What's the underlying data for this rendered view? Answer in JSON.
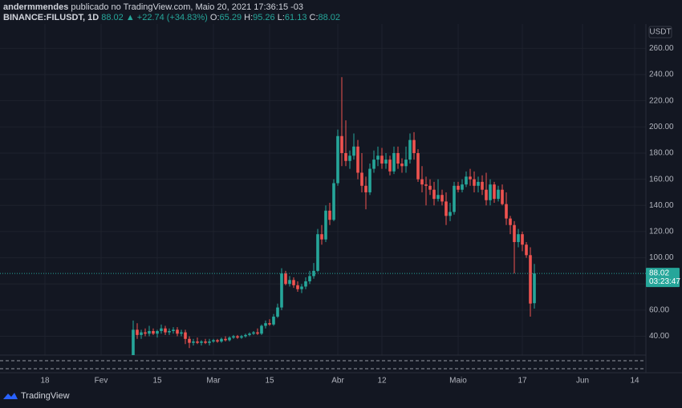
{
  "header": {
    "author": "andermmendes",
    "published": "publicado no TradingView.com, Maio 20, 2021 17:36:15 -03",
    "symbol": "BINANCE:FILUSDT, 1D",
    "change": "▲ +22.74 (+34.83%)",
    "o_label": "O:",
    "h_label": "H:",
    "l_label": "L:",
    "c_label": "C:"
  },
  "branding": "TradingView",
  "chart_data": {
    "type": "candlestick",
    "x": [
      "2021-02-09",
      "2021-02-10",
      "2021-02-11",
      "2021-02-12",
      "2021-02-13",
      "2021-02-14",
      "2021-02-15",
      "2021-02-16",
      "2021-02-17",
      "2021-02-18",
      "2021-02-19",
      "2021-02-20",
      "2021-02-21",
      "2021-02-22",
      "2021-02-23",
      "2021-02-24",
      "2021-02-25",
      "2021-02-26",
      "2021-02-27",
      "2021-02-28",
      "2021-03-01",
      "2021-03-02",
      "2021-03-03",
      "2021-03-04",
      "2021-03-05",
      "2021-03-06",
      "2021-03-07",
      "2021-03-08",
      "2021-03-09",
      "2021-03-10",
      "2021-03-11",
      "2021-03-12",
      "2021-03-13",
      "2021-03-14",
      "2021-03-15",
      "2021-03-16",
      "2021-03-17",
      "2021-03-18",
      "2021-03-19",
      "2021-03-20",
      "2021-03-21",
      "2021-03-22",
      "2021-03-23",
      "2021-03-24",
      "2021-03-25",
      "2021-03-26",
      "2021-03-27",
      "2021-03-28",
      "2021-03-29",
      "2021-03-30",
      "2021-03-31",
      "2021-04-01",
      "2021-04-02",
      "2021-04-03",
      "2021-04-04",
      "2021-04-05",
      "2021-04-06",
      "2021-04-07",
      "2021-04-08",
      "2021-04-09",
      "2021-04-10",
      "2021-04-11",
      "2021-04-12",
      "2021-04-13",
      "2021-04-14",
      "2021-04-15",
      "2021-04-16",
      "2021-04-17",
      "2021-04-18",
      "2021-04-19",
      "2021-04-20",
      "2021-04-21",
      "2021-04-22",
      "2021-04-23",
      "2021-04-24",
      "2021-04-25",
      "2021-04-26",
      "2021-04-27",
      "2021-04-28",
      "2021-04-29",
      "2021-04-30",
      "2021-05-01",
      "2021-05-02",
      "2021-05-03",
      "2021-05-04",
      "2021-05-05",
      "2021-05-06",
      "2021-05-07",
      "2021-05-08",
      "2021-05-09",
      "2021-05-10",
      "2021-05-11",
      "2021-05-12",
      "2021-05-13",
      "2021-05-14",
      "2021-05-15",
      "2021-05-16",
      "2021-05-17",
      "2021-05-18",
      "2021-05-19",
      "2021-05-20"
    ],
    "open": [
      25,
      45,
      41,
      43,
      42,
      44,
      42,
      44,
      46,
      43,
      44,
      45,
      42,
      43,
      38,
      35,
      36,
      35,
      36,
      35,
      36,
      37,
      36,
      38,
      37,
      39,
      40,
      39,
      40,
      41,
      42,
      43,
      42,
      48,
      50,
      49,
      55,
      62,
      88,
      80,
      83,
      79,
      76,
      78,
      82,
      86,
      90,
      118,
      114,
      136,
      129,
      157,
      193,
      180,
      174,
      178,
      185,
      165,
      155,
      150,
      168,
      175,
      178,
      172,
      175,
      166,
      180,
      172,
      170,
      175,
      190,
      180,
      160,
      156,
      155,
      152,
      145,
      148,
      143,
      132,
      135,
      155,
      152,
      156,
      162,
      160,
      155,
      158,
      152,
      144,
      156,
      145,
      152,
      141,
      130,
      125,
      112,
      118,
      110,
      102,
      65.29
    ],
    "high": [
      52,
      50,
      45,
      46,
      48,
      46,
      45,
      49,
      48,
      46,
      47,
      47,
      45,
      45,
      40,
      38,
      39,
      37,
      38,
      38,
      38,
      38,
      39,
      40,
      40,
      41,
      41,
      41,
      42,
      43,
      44,
      46,
      49,
      52,
      53,
      57,
      65,
      92,
      90,
      86,
      85,
      82,
      80,
      85,
      90,
      96,
      122,
      125,
      140,
      142,
      160,
      198,
      238,
      205,
      182,
      195,
      190,
      180,
      162,
      172,
      182,
      185,
      184,
      180,
      178,
      185,
      185,
      176,
      185,
      195,
      196,
      183,
      170,
      162,
      160,
      158,
      160,
      152,
      150,
      142,
      158,
      158,
      160,
      166,
      168,
      166,
      162,
      163,
      165,
      160,
      158,
      155,
      156,
      150,
      132,
      128,
      122,
      120,
      112,
      108,
      95.26
    ],
    "low": [
      24,
      38,
      38,
      40,
      40,
      41,
      39,
      42,
      41,
      41,
      42,
      40,
      40,
      34,
      31,
      33,
      34,
      33,
      34,
      33,
      35,
      35,
      35,
      36,
      36,
      38,
      38,
      38,
      39,
      40,
      41,
      41,
      41,
      46,
      48,
      48,
      54,
      60,
      79,
      78,
      77,
      74,
      73,
      76,
      80,
      84,
      89,
      110,
      112,
      125,
      128,
      155,
      170,
      170,
      168,
      175,
      160,
      150,
      137,
      148,
      165,
      170,
      168,
      168,
      163,
      164,
      168,
      165,
      165,
      172,
      175,
      158,
      150,
      140,
      148,
      140,
      143,
      140,
      125,
      128,
      133,
      150,
      150,
      154,
      155,
      150,
      150,
      148,
      140,
      140,
      142,
      143,
      140,
      125,
      118,
      88,
      108,
      105,
      100,
      55,
      61.13
    ],
    "close": [
      45,
      41,
      43,
      42,
      44,
      42,
      44,
      46,
      43,
      44,
      45,
      42,
      43,
      38,
      35,
      36,
      35,
      36,
      35,
      36,
      37,
      36,
      38,
      37,
      39,
      40,
      39,
      40,
      41,
      42,
      43,
      42,
      48,
      50,
      49,
      55,
      62,
      88,
      80,
      83,
      79,
      76,
      78,
      82,
      86,
      90,
      118,
      114,
      136,
      129,
      157,
      193,
      180,
      174,
      178,
      185,
      165,
      155,
      150,
      168,
      175,
      178,
      172,
      175,
      166,
      180,
      172,
      170,
      175,
      190,
      180,
      160,
      156,
      155,
      152,
      145,
      148,
      143,
      132,
      135,
      155,
      152,
      156,
      162,
      160,
      155,
      158,
      152,
      144,
      156,
      145,
      152,
      141,
      130,
      125,
      112,
      118,
      110,
      102,
      65,
      88.02
    ],
    "up_color": "#26a69a",
    "down_color": "#ef5350",
    "xlim": [
      "2021-01-07",
      "2021-06-16"
    ],
    "xticks": [
      {
        "value": "2021-01-18",
        "label": "18"
      },
      {
        "value": "2021-02-01",
        "label": "Fev"
      },
      {
        "value": "2021-02-15",
        "label": "15"
      },
      {
        "value": "2021-03-01",
        "label": "Mar"
      },
      {
        "value": "2021-03-15",
        "label": "15"
      },
      {
        "value": "2021-04-01",
        "label": "Abr"
      },
      {
        "value": "2021-04-12",
        "label": "12"
      },
      {
        "value": "2021-05-01",
        "label": "Maio"
      },
      {
        "value": "2021-05-17",
        "label": "17"
      },
      {
        "value": "2021-06-01",
        "label": "Jun"
      },
      {
        "value": "2021-06-14",
        "label": "14"
      }
    ],
    "ylim": [
      25,
      278
    ],
    "yticks": [
      {
        "value": 40,
        "label": "40.00"
      },
      {
        "value": 60,
        "label": "60.00"
      },
      {
        "value": 80,
        "label": "80.00"
      },
      {
        "value": 100,
        "label": "100.00"
      },
      {
        "value": 120,
        "label": "120.00"
      },
      {
        "value": 140,
        "label": "140.00"
      },
      {
        "value": 160,
        "label": "160.00"
      },
      {
        "value": 180,
        "label": "180.00"
      },
      {
        "value": 200,
        "label": "200.00"
      },
      {
        "value": 220,
        "label": "220.00"
      },
      {
        "value": 240,
        "label": "240.00"
      },
      {
        "value": 260,
        "label": "260.00"
      }
    ],
    "grid": true,
    "y_unit": "USDT",
    "countdown": "03:23:47"
  }
}
